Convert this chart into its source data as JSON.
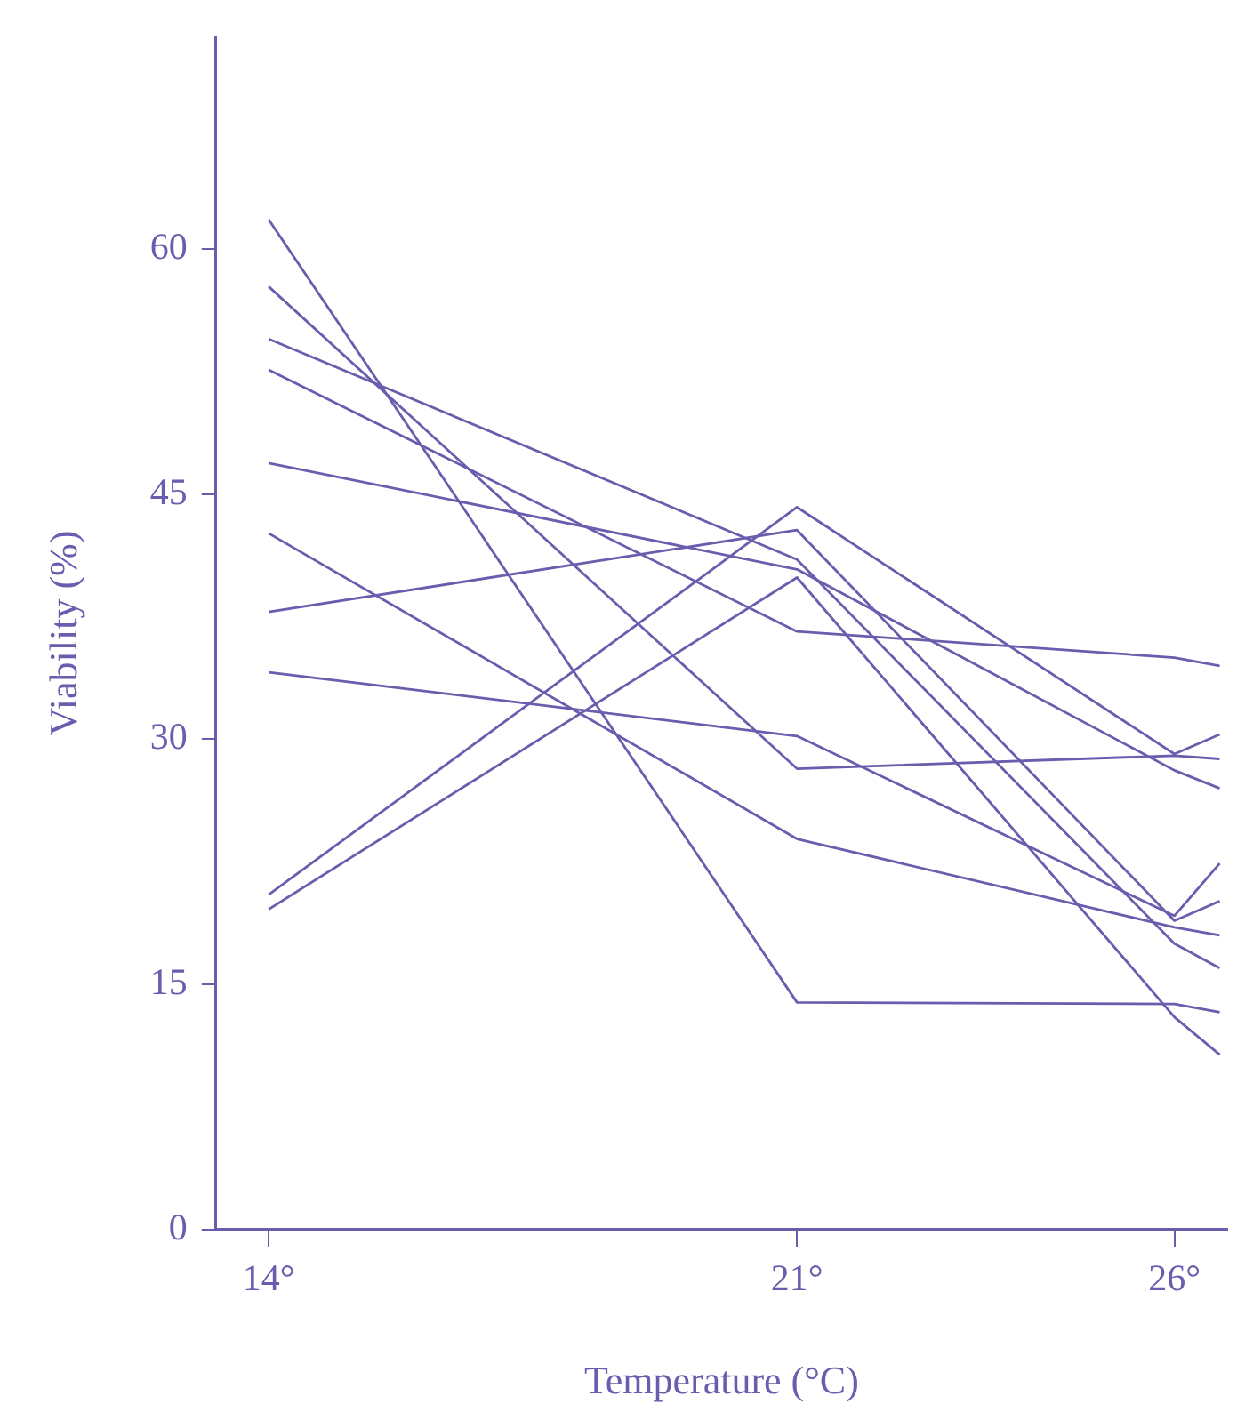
{
  "chart_data": {
    "type": "line",
    "xlabel": "Temperature (°C)",
    "ylabel": "Viability (%)",
    "xlim": [
      13.3,
      26.7
    ],
    "xticks": [
      {
        "value": 14,
        "label": "14°"
      },
      {
        "value": 21,
        "label": "21°"
      },
      {
        "value": 26,
        "label": "26°"
      }
    ],
    "ylim": [
      0,
      73
    ],
    "yticks": [
      0,
      15,
      30,
      45,
      60
    ],
    "grid": false,
    "legend": false,
    "marker": "none",
    "line_style": "solid",
    "x": [
      14,
      21,
      26,
      26.6
    ],
    "series": [
      {
        "color": "#6b5cae",
        "values": [
          61.8,
          13.9,
          13.8,
          13.3
        ]
      },
      {
        "color": "#6b5cae",
        "values": [
          57.7,
          28.2,
          29.0,
          28.8
        ]
      },
      {
        "color": "#6b5cae",
        "values": [
          54.5,
          41.0,
          17.5,
          16.0
        ]
      },
      {
        "color": "#6b5cae",
        "values": [
          52.6,
          36.6,
          35.0,
          34.5
        ]
      },
      {
        "color": "#6b5cae",
        "values": [
          46.9,
          40.4,
          28.1,
          27.0
        ]
      },
      {
        "color": "#6b5cae",
        "values": [
          42.6,
          23.9,
          18.5,
          18.0
        ]
      },
      {
        "color": "#6b5cae",
        "values": [
          37.8,
          42.8,
          18.9,
          20.1
        ]
      },
      {
        "color": "#6b5cae",
        "values": [
          34.1,
          30.2,
          19.2,
          22.4
        ]
      },
      {
        "color": "#6b5cae",
        "values": [
          20.5,
          44.2,
          29.1,
          30.3
        ]
      },
      {
        "color": "#6b5cae",
        "values": [
          19.6,
          39.9,
          13.0,
          10.7
        ]
      }
    ]
  }
}
